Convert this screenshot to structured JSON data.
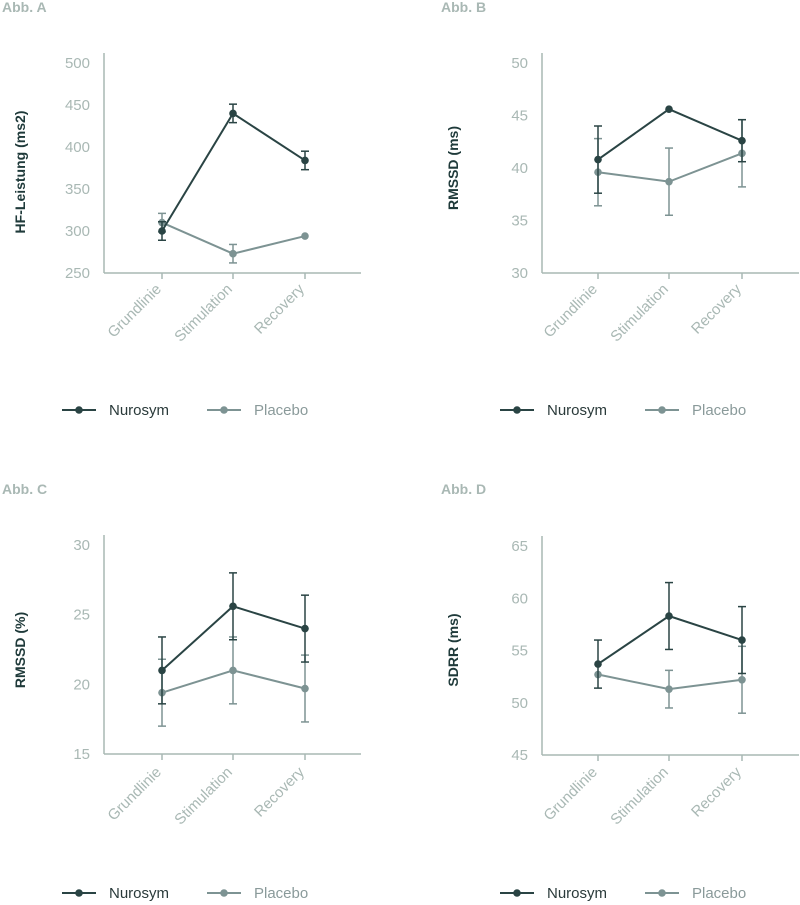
{
  "colors": {
    "nurosym": "#2a4444",
    "placebo": "#7d9393",
    "axis": "#a9b8b4",
    "ylabel": "#1f3a3a",
    "legend_text_nurosym": "#2a3a3a",
    "legend_text_placebo": "#8a9a9a"
  },
  "legend": {
    "series": [
      "Nurosym",
      "Placebo"
    ]
  },
  "chart_data": [
    {
      "panel_label": "Abb. A",
      "type": "line",
      "ylabel": "HF-Leistung (ms2)",
      "categories": [
        "Grundlinie",
        "Stimulation",
        "Recovery"
      ],
      "ylim": [
        250,
        500
      ],
      "yticks": [
        250,
        300,
        350,
        400,
        450,
        500
      ],
      "series": [
        {
          "name": "Nurosym",
          "values": [
            300,
            440,
            384
          ],
          "errors": [
            11,
            11,
            11
          ]
        },
        {
          "name": "Placebo",
          "values": [
            310,
            273,
            294
          ],
          "errors": [
            11,
            11,
            0
          ]
        }
      ]
    },
    {
      "panel_label": "Abb. B",
      "type": "line",
      "ylabel": "RMSSD (ms)",
      "categories": [
        "Grundlinie",
        "Stimulation",
        "Recovery"
      ],
      "ylim": [
        30,
        50
      ],
      "yticks": [
        30,
        35,
        40,
        45,
        50
      ],
      "series": [
        {
          "name": "Nurosym",
          "values": [
            40.8,
            45.6,
            42.6
          ],
          "errors": [
            3.2,
            0,
            2.0
          ]
        },
        {
          "name": "Placebo",
          "values": [
            39.6,
            38.7,
            41.4
          ],
          "errors": [
            3.2,
            3.2,
            3.2
          ]
        }
      ]
    },
    {
      "panel_label": "Abb. C",
      "type": "line",
      "ylabel": "RMSSD (%)",
      "categories": [
        "Grundlinie",
        "Stimulation",
        "Recovery"
      ],
      "ylim": [
        15,
        30
      ],
      "yticks": [
        15,
        20,
        25,
        30
      ],
      "series": [
        {
          "name": "Nurosym",
          "values": [
            21.0,
            25.6,
            24.0
          ],
          "errors": [
            2.4,
            2.4,
            2.4
          ]
        },
        {
          "name": "Placebo",
          "values": [
            19.4,
            21.0,
            19.7
          ],
          "errors": [
            2.4,
            2.4,
            2.4
          ]
        }
      ]
    },
    {
      "panel_label": "Abb. D",
      "type": "line",
      "ylabel": "SDRR (ms)",
      "categories": [
        "Grundlinie",
        "Stimulation",
        "Recovery"
      ],
      "ylim": [
        45,
        65
      ],
      "yticks": [
        45,
        50,
        55,
        60,
        65
      ],
      "series": [
        {
          "name": "Nurosym",
          "values": [
            53.7,
            58.3,
            56.0
          ],
          "errors": [
            2.3,
            3.2,
            3.2
          ]
        },
        {
          "name": "Placebo",
          "values": [
            52.7,
            51.3,
            52.2
          ],
          "errors": [
            0,
            1.8,
            3.2
          ]
        }
      ]
    }
  ]
}
